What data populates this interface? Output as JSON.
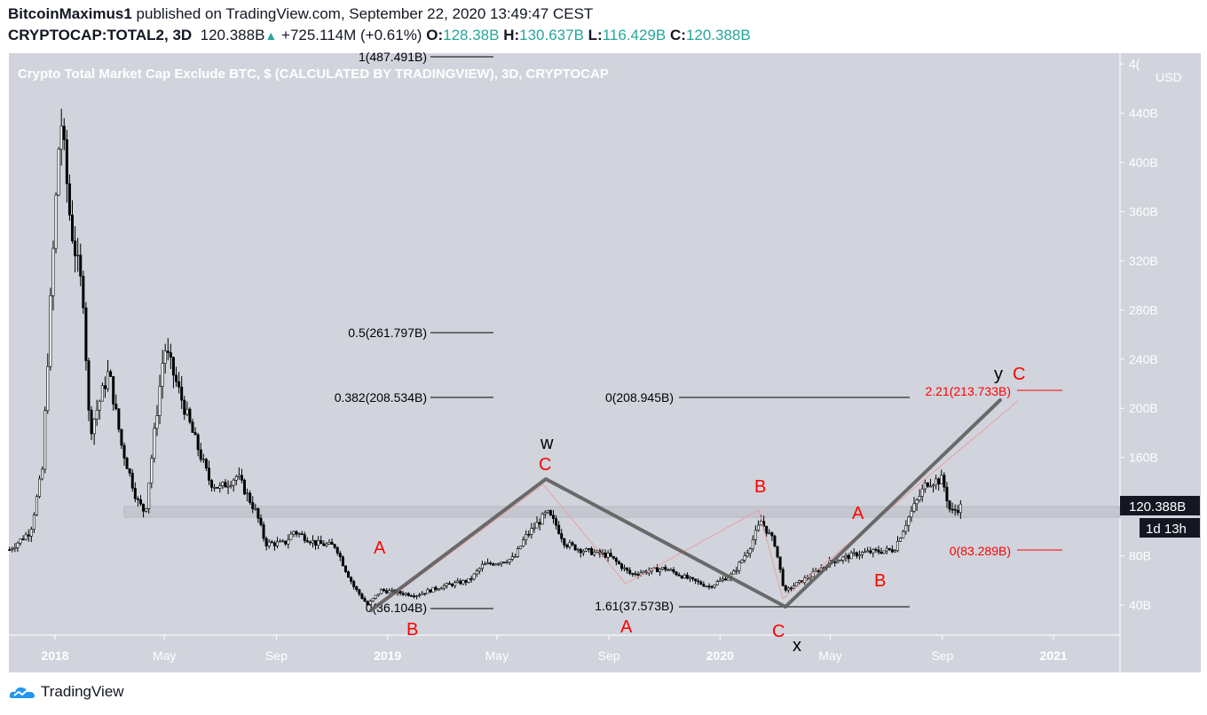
{
  "header": {
    "author": "BitcoinMaximus1",
    "published": "published on TradingView.com, September 22, 2020 13:49:47 CEST",
    "symbol": "CRYPTOCAP:TOTAL2, 3D",
    "last": "120.388B",
    "change": "+725.114M (+0.61%)",
    "o_label": "O:",
    "o": "128.38B",
    "h_label": "H:",
    "h": "130.637B",
    "l_label": "L:",
    "l": "116.429B",
    "c_label": "C:",
    "c": "120.388B"
  },
  "chart_title": "Crypto Total Market Cap Exclude BTC, $ (CALCULATED BY TRADINGVIEW), 3D, CRYPTOCAP",
  "colors": {
    "bg": "#d1d4dc",
    "up": "#26a69a",
    "red": "#ff0000",
    "wave": "#555555",
    "label_bg": "#131722"
  },
  "chart_data": {
    "type": "candlestick",
    "currency": "USD",
    "y_unit": "B",
    "ylim": [
      20,
      480
    ],
    "y_ticks": [
      "4(",
      "440B",
      "400B",
      "360B",
      "320B",
      "280B",
      "240B",
      "200B",
      "160B",
      "80B",
      "40B"
    ],
    "x_ticks": [
      "2018",
      "May",
      "Sep",
      "2019",
      "May",
      "Sep",
      "2020",
      "May",
      "Sep",
      "2021"
    ],
    "approx_close_path": [
      [
        "2017-11-12",
        85
      ],
      [
        "2017-12-05",
        100
      ],
      [
        "2017-12-18",
        150
      ],
      [
        "2017-12-28",
        300
      ],
      [
        "2018-01-07",
        440
      ],
      [
        "2018-01-18",
        350
      ],
      [
        "2018-02-01",
        290
      ],
      [
        "2018-02-08",
        180
      ],
      [
        "2018-03-01",
        230
      ],
      [
        "2018-03-15",
        170
      ],
      [
        "2018-04-01",
        125
      ],
      [
        "2018-04-10",
        115
      ],
      [
        "2018-05-01",
        250
      ],
      [
        "2018-05-10",
        230
      ],
      [
        "2018-06-01",
        180
      ],
      [
        "2018-06-20",
        140
      ],
      [
        "2018-07-01",
        135
      ],
      [
        "2018-07-20",
        145
      ],
      [
        "2018-08-10",
        115
      ],
      [
        "2018-08-20",
        90
      ],
      [
        "2018-09-10",
        90
      ],
      [
        "2018-09-20",
        100
      ],
      [
        "2018-10-15",
        90
      ],
      [
        "2018-11-05",
        88
      ],
      [
        "2018-11-15",
        70
      ],
      [
        "2018-11-25",
        55
      ],
      [
        "2018-12-10",
        40
      ],
      [
        "2018-12-25",
        52
      ],
      [
        "2019-02-01",
        48
      ],
      [
        "2019-03-01",
        55
      ],
      [
        "2019-04-01",
        60
      ],
      [
        "2019-04-15",
        72
      ],
      [
        "2019-05-20",
        78
      ],
      [
        "2019-06-01",
        95
      ],
      [
        "2019-06-25",
        115
      ],
      [
        "2019-07-05",
        105
      ],
      [
        "2019-07-15",
        90
      ],
      [
        "2019-08-01",
        85
      ],
      [
        "2019-09-01",
        80
      ],
      [
        "2019-09-25",
        65
      ],
      [
        "2019-11-01",
        70
      ],
      [
        "2019-12-01",
        60
      ],
      [
        "2019-12-20",
        55
      ],
      [
        "2020-01-15",
        65
      ],
      [
        "2020-02-01",
        85
      ],
      [
        "2020-02-15",
        108
      ],
      [
        "2020-03-01",
        90
      ],
      [
        "2020-03-12",
        50
      ],
      [
        "2020-03-20",
        55
      ],
      [
        "2020-04-01",
        60
      ],
      [
        "2020-05-01",
        75
      ],
      [
        "2020-06-01",
        82
      ],
      [
        "2020-07-10",
        85
      ],
      [
        "2020-07-25",
        110
      ],
      [
        "2020-08-15",
        140
      ],
      [
        "2020-09-01",
        142
      ],
      [
        "2020-09-10",
        115
      ],
      [
        "2020-09-22",
        120.388
      ]
    ],
    "last_price_label": "120.388B",
    "countdown": "1d 13h"
  },
  "fib_labels": {
    "f1": "1(487.491B)",
    "f05": "0.5(261.797B)",
    "f0382": "0.382(208.534B)",
    "f0a": "0(36.104B)",
    "f0b": "0(208.945B)",
    "f161": "1.61(37.573B)",
    "f221": "2.21(213.733B)",
    "f0c": "0(83.289B)"
  },
  "wave_labels": {
    "w": "w",
    "x": "x",
    "y": "y"
  },
  "abc_labels": [
    "A",
    "B",
    "C",
    "A",
    "B",
    "C",
    "A",
    "B",
    "C"
  ],
  "footer": {
    "brand": "TradingView"
  }
}
